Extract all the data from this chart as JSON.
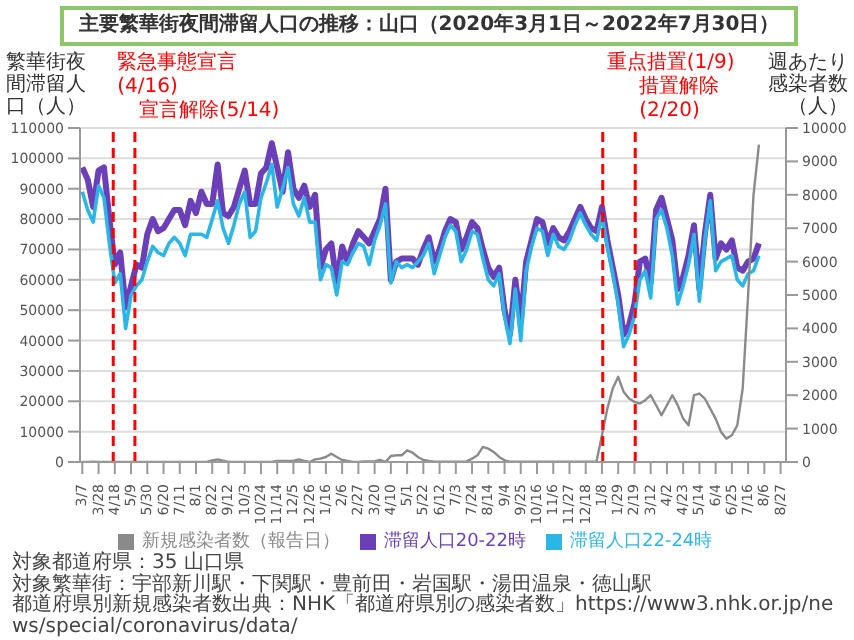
{
  "chart_data": {
    "type": "line",
    "title": "主要繁華街夜間滞留人口の推移：山口（2020年3月1日～2022年7月30日）",
    "ylabel": "繁華街夜間滞留人口（人）",
    "y2label": "週あたり感染者数（人）",
    "x": [
      "2020-03-07",
      "2020-03-14",
      "2020-03-21",
      "2020-03-28",
      "2020-04-04",
      "2020-04-11",
      "2020-04-18",
      "2020-04-25",
      "2020-05-02",
      "2020-05-09",
      "2020-05-16",
      "2020-05-23",
      "2020-05-30",
      "2020-06-06",
      "2020-06-13",
      "2020-06-20",
      "2020-06-27",
      "2020-07-04",
      "2020-07-11",
      "2020-07-18",
      "2020-07-25",
      "2020-08-01",
      "2020-08-08",
      "2020-08-15",
      "2020-08-22",
      "2020-08-29",
      "2020-09-05",
      "2020-09-12",
      "2020-09-19",
      "2020-09-26",
      "2020-10-03",
      "2020-10-10",
      "2020-10-17",
      "2020-10-24",
      "2020-10-31",
      "2020-11-07",
      "2020-11-14",
      "2020-11-21",
      "2020-11-28",
      "2020-12-05",
      "2020-12-12",
      "2020-12-19",
      "2020-12-26",
      "2021-01-02",
      "2021-01-09",
      "2021-01-16",
      "2021-01-23",
      "2021-01-30",
      "2021-02-06",
      "2021-02-13",
      "2021-02-20",
      "2021-02-27",
      "2021-03-06",
      "2021-03-13",
      "2021-03-20",
      "2021-03-27",
      "2021-04-03",
      "2021-04-10",
      "2021-04-17",
      "2021-04-24",
      "2021-05-01",
      "2021-05-08",
      "2021-05-15",
      "2021-05-22",
      "2021-05-29",
      "2021-06-05",
      "2021-06-12",
      "2021-06-19",
      "2021-06-26",
      "2021-07-03",
      "2021-07-10",
      "2021-07-17",
      "2021-07-24",
      "2021-07-31",
      "2021-08-07",
      "2021-08-14",
      "2021-08-21",
      "2021-08-28",
      "2021-09-04",
      "2021-09-11",
      "2021-09-18",
      "2021-09-25",
      "2021-10-02",
      "2021-10-09",
      "2021-10-16",
      "2021-10-23",
      "2021-10-30",
      "2021-11-06",
      "2021-11-13",
      "2021-11-20",
      "2021-11-27",
      "2021-12-04",
      "2021-12-11",
      "2021-12-18",
      "2021-12-25",
      "2022-01-01",
      "2022-01-08",
      "2022-01-15",
      "2022-01-22",
      "2022-01-29",
      "2022-02-05",
      "2022-02-12",
      "2022-02-19",
      "2022-02-26",
      "2022-03-05",
      "2022-03-12",
      "2022-03-19",
      "2022-03-26",
      "2022-04-02",
      "2022-04-09",
      "2022-04-16",
      "2022-04-23",
      "2022-04-30",
      "2022-05-07",
      "2022-05-14",
      "2022-05-21",
      "2022-05-28",
      "2022-06-04",
      "2022-06-11",
      "2022-06-18",
      "2022-06-25",
      "2022-07-02",
      "2022-07-09",
      "2022-07-16",
      "2022-07-23",
      "2022-07-30"
    ],
    "series": [
      {
        "name": "滞留人口20-22時",
        "color": "#6a3fb8",
        "values": [
          97000,
          93000,
          84000,
          96000,
          97000,
          80000,
          65000,
          69000,
          51000,
          58000,
          65000,
          64000,
          75000,
          80000,
          76000,
          77000,
          80000,
          83000,
          83000,
          78000,
          86000,
          82000,
          89000,
          85000,
          85000,
          98000,
          82000,
          81000,
          84000,
          90000,
          96000,
          85000,
          85000,
          95000,
          97000,
          105000,
          97000,
          89000,
          102000,
          90000,
          87000,
          91000,
          84000,
          88000,
          64000,
          70000,
          72000,
          59000,
          71000,
          66000,
          72000,
          76000,
          74000,
          72000,
          76000,
          80000,
          90000,
          60000,
          66000,
          67000,
          67000,
          67000,
          65000,
          70000,
          74000,
          66000,
          70000,
          76000,
          80000,
          79000,
          70000,
          74000,
          79000,
          77000,
          70000,
          64000,
          61000,
          64000,
          50000,
          42000,
          60000,
          46000,
          66000,
          73000,
          80000,
          79000,
          72000,
          77000,
          74000,
          73000,
          76000,
          80000,
          84000,
          80000,
          77000,
          76000,
          84000,
          73000,
          64000,
          55000,
          42000,
          45000,
          52000,
          66000,
          67000,
          59000,
          83000,
          87000,
          80000,
          73000,
          57000,
          61000,
          68000,
          78000,
          57000,
          75000,
          88000,
          67000,
          72000,
          70000,
          73000,
          64000,
          63000,
          66000,
          67000,
          72000
        ]
      },
      {
        "name": "滞留人口22-24時",
        "color": "#2bb6e6",
        "values": [
          89000,
          83000,
          79000,
          91000,
          87000,
          72000,
          59000,
          62000,
          44000,
          55000,
          58000,
          60000,
          66000,
          71000,
          69000,
          68000,
          72000,
          74000,
          72000,
          68000,
          75000,
          75000,
          75000,
          74000,
          80000,
          86000,
          77000,
          72000,
          78000,
          85000,
          89000,
          74000,
          76000,
          87000,
          92000,
          98000,
          84000,
          90000,
          97000,
          85000,
          81000,
          87000,
          79000,
          79000,
          60000,
          65000,
          64000,
          55000,
          66000,
          65000,
          69000,
          72000,
          71000,
          65000,
          73000,
          78000,
          85000,
          59000,
          66000,
          64000,
          65000,
          64000,
          66000,
          68000,
          72000,
          62000,
          68000,
          74000,
          78000,
          76000,
          66000,
          70000,
          76000,
          75000,
          67000,
          60000,
          58000,
          62000,
          48000,
          39000,
          57000,
          40000,
          63000,
          71000,
          77000,
          76000,
          68000,
          75000,
          71000,
          70000,
          73000,
          78000,
          82000,
          78000,
          75000,
          73000,
          81000,
          71000,
          62000,
          52000,
          38000,
          42000,
          48000,
          60000,
          63000,
          54000,
          80000,
          83000,
          77000,
          68000,
          52000,
          58000,
          65000,
          75000,
          53000,
          73000,
          86000,
          63000,
          66000,
          67000,
          68000,
          60000,
          58000,
          62000,
          63000,
          68000
        ]
      },
      {
        "name": "新規感染者数（報告日）",
        "color": "#8a8a8a",
        "axis": "y2",
        "values": [
          0,
          0,
          10,
          0,
          0,
          0,
          0,
          0,
          0,
          0,
          0,
          0,
          0,
          0,
          0,
          0,
          0,
          0,
          0,
          0,
          0,
          0,
          0,
          0,
          50,
          80,
          40,
          0,
          0,
          0,
          0,
          0,
          0,
          0,
          0,
          0,
          30,
          30,
          30,
          30,
          80,
          30,
          0,
          80,
          100,
          150,
          250,
          150,
          60,
          30,
          0,
          0,
          20,
          20,
          20,
          60,
          0,
          180,
          200,
          200,
          350,
          280,
          150,
          60,
          30,
          10,
          10,
          10,
          10,
          10,
          10,
          20,
          100,
          200,
          450,
          400,
          300,
          150,
          50,
          10,
          10,
          10,
          10,
          10,
          10,
          10,
          10,
          10,
          10,
          10,
          10,
          10,
          10,
          10,
          10,
          20,
          800,
          1600,
          2200,
          2550,
          2100,
          1900,
          1800,
          1750,
          1850,
          2000,
          1700,
          1400,
          1700,
          2000,
          1700,
          1300,
          1100,
          2000,
          2050,
          1900,
          1600,
          1300,
          900,
          700,
          800,
          1100,
          2200,
          5000,
          8000,
          9500
        ]
      }
    ],
    "xlim": [
      "2020-03-04",
      "2022-09-03"
    ],
    "xticks": [
      {
        "value": "2020-03-07",
        "label": "3/7"
      },
      {
        "value": "2020-03-28",
        "label": "3/28"
      },
      {
        "value": "2020-04-18",
        "label": "4/18"
      },
      {
        "value": "2020-05-09",
        "label": "5/9"
      },
      {
        "value": "2020-05-30",
        "label": "5/30"
      },
      {
        "value": "2020-06-20",
        "label": "6/20"
      },
      {
        "value": "2020-07-11",
        "label": "7/11"
      },
      {
        "value": "2020-08-01",
        "label": "8/1"
      },
      {
        "value": "2020-08-22",
        "label": "8/22"
      },
      {
        "value": "2020-09-12",
        "label": "9/12"
      },
      {
        "value": "2020-10-03",
        "label": "10/3"
      },
      {
        "value": "2020-10-24",
        "label": "10/24"
      },
      {
        "value": "2020-11-14",
        "label": "11/14"
      },
      {
        "value": "2020-12-05",
        "label": "12/5"
      },
      {
        "value": "2020-12-26",
        "label": "12/26"
      },
      {
        "value": "2021-01-16",
        "label": "1/16"
      },
      {
        "value": "2021-02-06",
        "label": "2/6"
      },
      {
        "value": "2021-02-27",
        "label": "2/27"
      },
      {
        "value": "2021-03-20",
        "label": "3/20"
      },
      {
        "value": "2021-04-10",
        "label": "4/10"
      },
      {
        "value": "2021-05-01",
        "label": "5/1"
      },
      {
        "value": "2021-05-22",
        "label": "5/22"
      },
      {
        "value": "2021-06-12",
        "label": "6/12"
      },
      {
        "value": "2021-07-03",
        "label": "7/3"
      },
      {
        "value": "2021-07-24",
        "label": "7/24"
      },
      {
        "value": "2021-08-14",
        "label": "8/14"
      },
      {
        "value": "2021-09-04",
        "label": "9/4"
      },
      {
        "value": "2021-09-25",
        "label": "9/25"
      },
      {
        "value": "2021-10-16",
        "label": "10/16"
      },
      {
        "value": "2021-11-06",
        "label": "11/6"
      },
      {
        "value": "2021-11-27",
        "label": "11/27"
      },
      {
        "value": "2021-12-18",
        "label": "12/18"
      },
      {
        "value": "2022-01-08",
        "label": "1/8"
      },
      {
        "value": "2022-01-29",
        "label": "1/29"
      },
      {
        "value": "2022-02-19",
        "label": "2/19"
      },
      {
        "value": "2022-03-12",
        "label": "3/12"
      },
      {
        "value": "2022-04-02",
        "label": "4/2"
      },
      {
        "value": "2022-04-23",
        "label": "4/23"
      },
      {
        "value": "2022-05-14",
        "label": "5/14"
      },
      {
        "value": "2022-06-04",
        "label": "6/4"
      },
      {
        "value": "2022-06-25",
        "label": "6/25"
      },
      {
        "value": "2022-07-16",
        "label": "7/16"
      },
      {
        "value": "2022-08-06",
        "label": "8/6"
      },
      {
        "value": "2022-08-27",
        "label": "8/27"
      }
    ],
    "ylim": [
      0,
      110000
    ],
    "yticks": [
      0,
      10000,
      20000,
      30000,
      40000,
      50000,
      60000,
      70000,
      80000,
      90000,
      100000,
      110000
    ],
    "y2lim": [
      0,
      10000
    ],
    "y2ticks": [
      0,
      1000,
      2000,
      3000,
      4000,
      5000,
      6000,
      7000,
      8000,
      9000,
      10000
    ],
    "ref_lines": [
      {
        "axis": "x",
        "value": "2020-04-16",
        "label": "緊急事態宣言(4/16)",
        "color": "#ff0000",
        "line_style": "dashed"
      },
      {
        "axis": "x",
        "value": "2020-05-14",
        "label": "宣言解除(5/14)",
        "color": "#ff0000",
        "line_style": "dashed"
      },
      {
        "axis": "x",
        "value": "2022-01-09",
        "label": "重点措置(1/9)",
        "color": "#ff0000",
        "line_style": "dashed"
      },
      {
        "axis": "x",
        "value": "2022-02-20",
        "label": "措置解除(2/20)",
        "color": "#ff0000",
        "line_style": "dashed"
      }
    ],
    "grid": "y",
    "legend": "bottom",
    "marker": "none",
    "line_style": "solid",
    "annotations": [
      "対象都道府県：35 山口県",
      "対象繁華街：宇部新川駅・下関駅・豊前田・岩国駅・湯田温泉・徳山駅",
      "都道府県別新規感染者数出典：NHK「都道府県別の感染者数」https://www3.nhk.or.jp/news/special/coronavirus/data/"
    ]
  }
}
